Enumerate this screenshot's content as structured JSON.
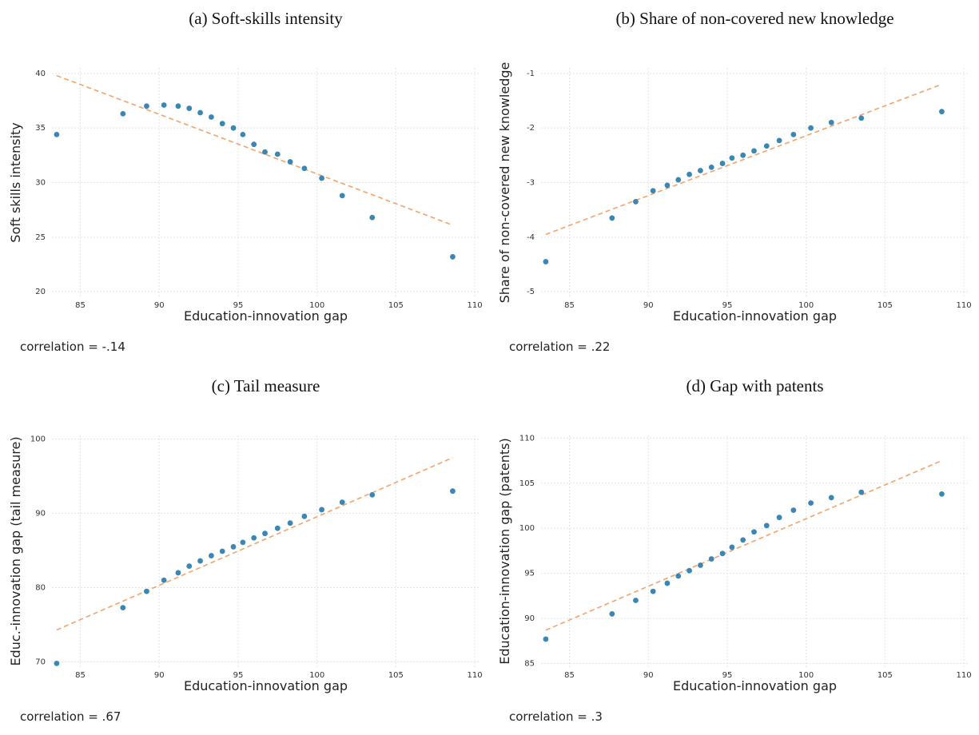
{
  "chart_data": [
    {
      "type": "scatter",
      "title": "(a) Soft-skills intensity",
      "xlabel": "Education-innovation gap",
      "ylabel": "Soft skills intensity",
      "annotation": "correlation = -.14",
      "x": [
        83.5,
        87.7,
        89.2,
        90.3,
        91.2,
        91.9,
        92.6,
        93.3,
        94.0,
        94.7,
        95.3,
        96.0,
        96.7,
        97.5,
        98.3,
        99.2,
        100.3,
        101.6,
        103.5,
        108.6
      ],
      "values": [
        34.4,
        36.3,
        37.0,
        37.1,
        37.0,
        36.8,
        36.4,
        36.0,
        35.4,
        35.0,
        34.4,
        33.5,
        32.8,
        32.6,
        31.9,
        31.3,
        30.4,
        28.8,
        26.8,
        23.2
      ],
      "fit_x": [
        83.5,
        108.6
      ],
      "fit_values": [
        39.8,
        26.1
      ],
      "color": "#3a87b5",
      "fit_color": "#f2a36b",
      "xlim": [
        83.2,
        110.3
      ],
      "ylim": [
        19.5,
        40.5
      ],
      "xticks": [
        85,
        90,
        95,
        100,
        105,
        110
      ],
      "yticks": [
        20,
        25,
        30,
        35,
        40
      ],
      "grid": true
    },
    {
      "type": "scatter",
      "title": "(b) Share of non-covered new knowledge",
      "xlabel": "Education-innovation gap",
      "ylabel": "Share of non-covered new knowledge",
      "annotation": "correlation = .22",
      "x": [
        83.5,
        87.7,
        89.2,
        90.3,
        91.2,
        91.9,
        92.6,
        93.3,
        94.0,
        94.7,
        95.3,
        96.0,
        96.7,
        97.5,
        98.3,
        99.2,
        100.3,
        101.6,
        103.5,
        108.6
      ],
      "values": [
        -4.45,
        -3.65,
        -3.35,
        -3.15,
        -3.05,
        -2.95,
        -2.85,
        -2.78,
        -2.72,
        -2.65,
        -2.55,
        -2.5,
        -2.42,
        -2.33,
        -2.23,
        -2.12,
        -2.0,
        -1.9,
        -1.82,
        -1.7
      ],
      "fit_x": [
        83.5,
        108.6
      ],
      "fit_values": [
        -3.95,
        -1.2
      ],
      "color": "#3a87b5",
      "fit_color": "#f2a36b",
      "xlim": [
        83.2,
        110.3
      ],
      "ylim": [
        -5.1,
        -0.9
      ],
      "xticks": [
        85,
        90,
        95,
        100,
        105,
        110
      ],
      "yticks": [
        -5,
        -4,
        -3,
        -2,
        -1
      ],
      "grid": true
    },
    {
      "type": "scatter",
      "title": "(c) Tail measure",
      "xlabel": "Education-innovation gap",
      "ylabel": "Educ.-innovation gap (tail measure)",
      "annotation": "correlation = .67",
      "x": [
        83.5,
        87.7,
        89.2,
        90.3,
        91.2,
        91.9,
        92.6,
        93.3,
        94.0,
        94.7,
        95.3,
        96.0,
        96.7,
        97.5,
        98.3,
        99.2,
        100.3,
        101.6,
        103.5,
        108.6
      ],
      "values": [
        69.8,
        77.3,
        79.5,
        81.0,
        82.0,
        82.9,
        83.6,
        84.3,
        84.9,
        85.5,
        86.1,
        86.7,
        87.3,
        88.0,
        88.7,
        89.6,
        90.5,
        91.5,
        92.5,
        93.0
      ],
      "fit_x": [
        83.5,
        108.6
      ],
      "fit_values": [
        74.3,
        97.5
      ],
      "color": "#3a87b5",
      "fit_color": "#f2a36b",
      "xlim": [
        83.2,
        110.3
      ],
      "ylim": [
        69.3,
        100.5
      ],
      "xticks": [
        85,
        90,
        95,
        100,
        105,
        110
      ],
      "yticks": [
        70,
        80,
        90,
        100
      ],
      "grid": true
    },
    {
      "type": "scatter",
      "title": "(d) Gap with patents",
      "xlabel": "Education-innovation gap",
      "ylabel": "Education-innovation gap (patents)",
      "annotation": "correlation = .3",
      "x": [
        83.5,
        87.7,
        89.2,
        90.3,
        91.2,
        91.9,
        92.6,
        93.3,
        94.0,
        94.7,
        95.3,
        96.0,
        96.7,
        97.5,
        98.3,
        99.2,
        100.3,
        101.6,
        103.5,
        108.6
      ],
      "values": [
        87.7,
        90.5,
        92.0,
        93.0,
        93.9,
        94.7,
        95.3,
        95.9,
        96.6,
        97.2,
        97.9,
        98.7,
        99.6,
        100.3,
        101.2,
        102.0,
        102.8,
        103.4,
        104.0,
        103.8
      ],
      "fit_x": [
        83.5,
        108.6
      ],
      "fit_values": [
        88.7,
        107.5
      ],
      "color": "#3a87b5",
      "fit_color": "#f2a36b",
      "xlim": [
        83.2,
        110.3
      ],
      "ylim": [
        84.6,
        110.3
      ],
      "xticks": [
        85,
        90,
        95,
        100,
        105,
        110
      ],
      "yticks": [
        85,
        90,
        95,
        100,
        105,
        110
      ],
      "grid": true
    }
  ]
}
